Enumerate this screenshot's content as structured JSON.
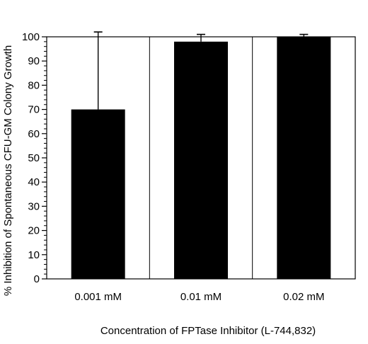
{
  "chart_data": {
    "type": "bar",
    "title": "",
    "xlabel": "Concentration of FPTase Inhibitor (L-744,832)",
    "ylabel": "% Inhibition of Spontaneous CFU-GM Colony Growth",
    "categories": [
      "0.001 mM",
      "0.01 mM",
      "0.02 mM"
    ],
    "values": [
      70,
      98,
      100
    ],
    "error_upper": [
      32,
      3,
      1
    ],
    "ylim": [
      0,
      100
    ],
    "yticks": [
      "0",
      "10",
      "20",
      "30",
      "40",
      "50",
      "60",
      "70",
      "80",
      "90",
      "100"
    ],
    "grid": "vertical category separators",
    "legend": "none",
    "bar_color": "#000000"
  }
}
